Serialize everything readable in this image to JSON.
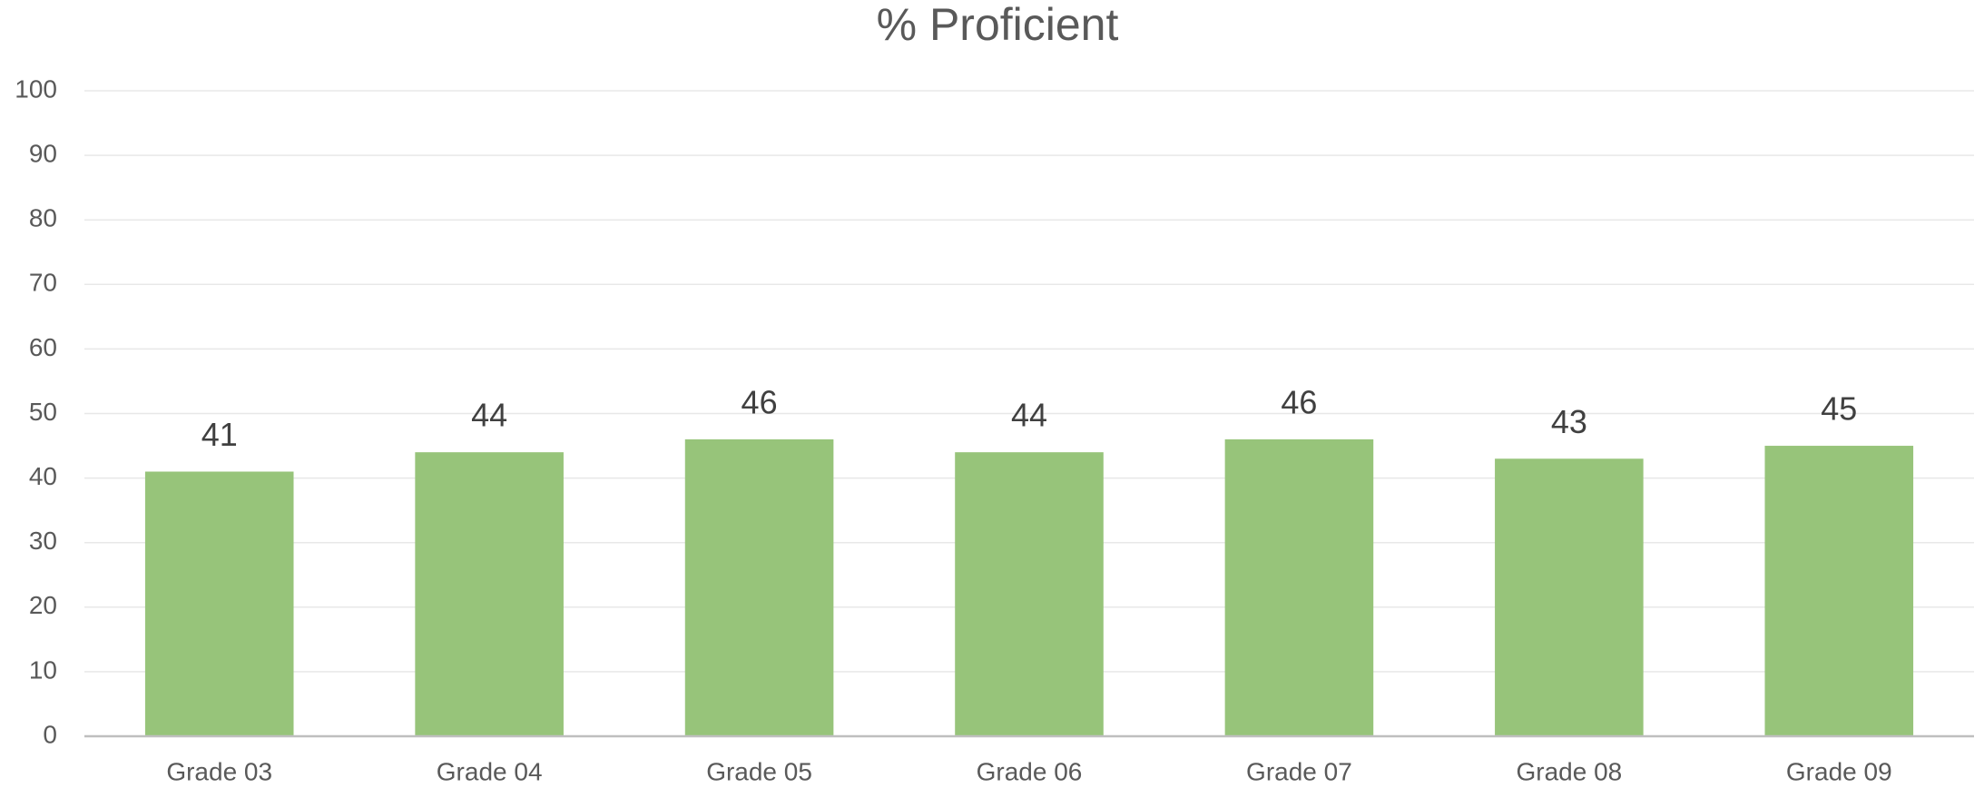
{
  "chart_data": {
    "type": "bar",
    "title": "% Proficient",
    "categories": [
      "Grade 03",
      "Grade 04",
      "Grade 05",
      "Grade 06",
      "Grade 07",
      "Grade 08",
      "Grade 09"
    ],
    "values": [
      41,
      44,
      46,
      44,
      46,
      43,
      45
    ],
    "color": "#97c47a",
    "ylim": [
      0,
      100
    ],
    "yticks": [
      0,
      10,
      20,
      30,
      40,
      50,
      60,
      70,
      80,
      90,
      100
    ],
    "grid": true
  }
}
